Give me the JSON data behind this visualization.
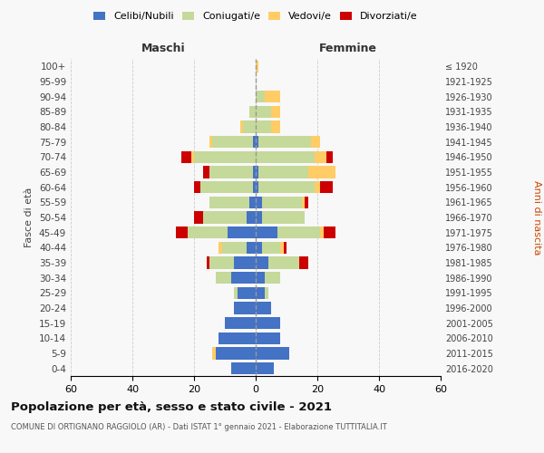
{
  "age_groups": [
    "0-4",
    "5-9",
    "10-14",
    "15-19",
    "20-24",
    "25-29",
    "30-34",
    "35-39",
    "40-44",
    "45-49",
    "50-54",
    "55-59",
    "60-64",
    "65-69",
    "70-74",
    "75-79",
    "80-84",
    "85-89",
    "90-94",
    "95-99",
    "100+"
  ],
  "birth_years": [
    "2016-2020",
    "2011-2015",
    "2006-2010",
    "2001-2005",
    "1996-2000",
    "1991-1995",
    "1986-1990",
    "1981-1985",
    "1976-1980",
    "1971-1975",
    "1966-1970",
    "1961-1965",
    "1956-1960",
    "1951-1955",
    "1946-1950",
    "1941-1945",
    "1936-1940",
    "1931-1935",
    "1926-1930",
    "1921-1925",
    "≤ 1920"
  ],
  "male": {
    "celibi": [
      8,
      13,
      12,
      10,
      7,
      6,
      8,
      7,
      3,
      9,
      3,
      2,
      1,
      1,
      0,
      1,
      0,
      0,
      0,
      0,
      0
    ],
    "coniugati": [
      0,
      0,
      0,
      0,
      0,
      1,
      5,
      8,
      8,
      13,
      14,
      13,
      17,
      14,
      20,
      13,
      4,
      2,
      0,
      0,
      0
    ],
    "vedovi": [
      0,
      1,
      0,
      0,
      0,
      0,
      0,
      0,
      1,
      0,
      0,
      0,
      0,
      0,
      1,
      1,
      1,
      0,
      0,
      0,
      0
    ],
    "divorziati": [
      0,
      0,
      0,
      0,
      0,
      0,
      0,
      1,
      0,
      4,
      3,
      0,
      2,
      2,
      3,
      0,
      0,
      0,
      0,
      0,
      0
    ]
  },
  "female": {
    "nubili": [
      6,
      11,
      8,
      8,
      5,
      3,
      3,
      4,
      2,
      7,
      2,
      2,
      1,
      1,
      0,
      1,
      0,
      0,
      0,
      0,
      0
    ],
    "coniugate": [
      0,
      0,
      0,
      0,
      0,
      1,
      5,
      10,
      6,
      14,
      14,
      13,
      18,
      16,
      19,
      17,
      5,
      5,
      3,
      0,
      0
    ],
    "vedove": [
      0,
      0,
      0,
      0,
      0,
      0,
      0,
      0,
      1,
      1,
      0,
      1,
      2,
      9,
      4,
      3,
      3,
      3,
      5,
      0,
      1
    ],
    "divorziate": [
      0,
      0,
      0,
      0,
      0,
      0,
      0,
      3,
      1,
      4,
      0,
      1,
      4,
      0,
      2,
      0,
      0,
      0,
      0,
      0,
      0
    ]
  },
  "colors": {
    "celibi_nubili": "#4472c4",
    "coniugati_e": "#c5d99b",
    "vedovi_e": "#ffcc66",
    "divorziati_e": "#cc0000"
  },
  "xlim": 60,
  "title": "Popolazione per età, sesso e stato civile - 2021",
  "subtitle": "COMUNE DI ORTIGNANO RAGGIOLO (AR) - Dati ISTAT 1° gennaio 2021 - Elaborazione TUTTITALIA.IT",
  "ylabel_left": "Fasce di età",
  "ylabel_right": "Anni di nascita",
  "xlabel_left": "Maschi",
  "xlabel_right": "Femmine",
  "bg_color": "#f8f8f8",
  "grid_color": "#cccccc"
}
